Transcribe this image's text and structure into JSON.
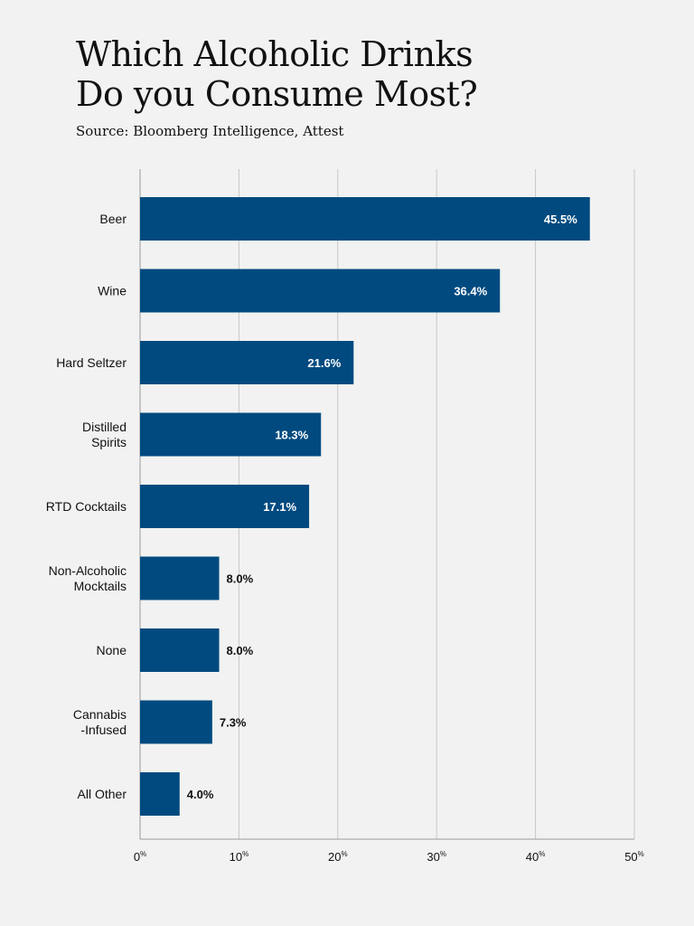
{
  "header": {
    "title_line1": "Which Alcoholic Drinks",
    "title_line2": "Do you Consume Most?",
    "source": "Source: Bloomberg Intelligence, Attest"
  },
  "colors": {
    "background": "#f1f2f1",
    "bar": "#004a7f",
    "grid": "#c8c8c8",
    "text": "#111111",
    "label_inside": "#ffffff"
  },
  "chart_data": {
    "type": "bar",
    "orientation": "horizontal",
    "categories": [
      [
        "Beer"
      ],
      [
        "Wine"
      ],
      [
        "Hard Seltzer"
      ],
      [
        "Distilled",
        "Spirits"
      ],
      [
        "RTD Cocktails"
      ],
      [
        "Non-Alcoholic",
        "Mocktails"
      ],
      [
        "None"
      ],
      [
        "Cannabis",
        "-Infused"
      ],
      [
        "All Other"
      ]
    ],
    "values": [
      45.5,
      36.4,
      21.6,
      18.3,
      17.1,
      8.0,
      8.0,
      7.3,
      4.0
    ],
    "data_labels": [
      "45.5%",
      "36.4%",
      "21.6%",
      "18.3%",
      "17.1%",
      "8.0%",
      "8.0%",
      "7.3%",
      "4.0%"
    ],
    "xlim": [
      0,
      50
    ],
    "xticks": [
      0,
      10,
      20,
      30,
      40,
      50
    ],
    "tick_label_number": [
      "0",
      "10",
      "20",
      "30",
      "40",
      "50"
    ],
    "tick_label_unit": "%",
    "grid": true,
    "title": "Which Alcoholic Drinks Do you Consume Most?",
    "xlabel": "",
    "ylabel": ""
  }
}
